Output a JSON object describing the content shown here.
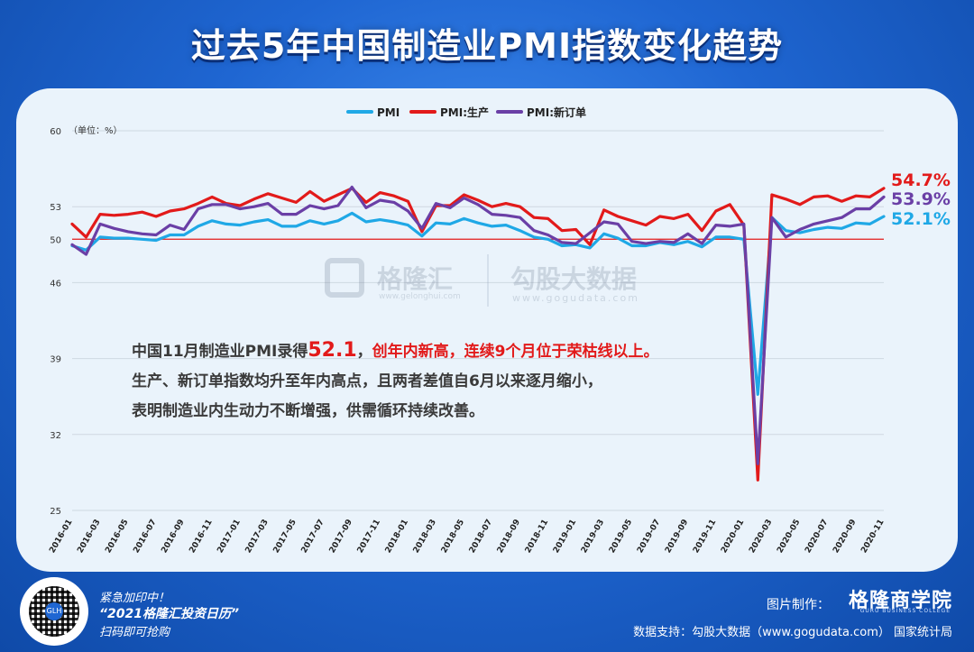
{
  "title": "过去5年中国制造业PMI指数变化趋势",
  "annotation": {
    "line1_a": "中国11月制造业PMI录得",
    "line1_value": "52.1",
    "line1_b": "，",
    "line1_red": "创年内新高，连续9个月位于荣枯线以上。",
    "line2": "生产、新订单指数均升至年内高点，且两者差值自6月以来逐月缩小，",
    "line3": "表明制造业内生动力不断增强，供需循环持续改善。"
  },
  "end_labels": {
    "pmi": "52.1%",
    "production": "54.7%",
    "new_orders": "53.9%"
  },
  "watermark": {
    "brand1": "格隆汇",
    "brand1_url": "www.gelonghui.com",
    "brand2": "勾股大数据",
    "brand2_url": "www.gogudata.com"
  },
  "footer": {
    "promo_line1": "紧急加印中！",
    "promo_line2": "“2021格隆汇投资日历”",
    "promo_line3": "扫码即可抢购",
    "credit_label": "图片制作：",
    "brand": "格隆商学院",
    "brand_sub": "GURU BUSINESS COLLEGE",
    "source": "数据支持：勾股大数据（www.gogudata.com）     国家统计局"
  },
  "colors": {
    "pmi": "#1fa8e6",
    "production": "#e21a1a",
    "new_orders": "#6a3fa6",
    "threshold": "#e21a1a"
  },
  "chart_data": {
    "type": "line",
    "ylabel": "（单位：%）",
    "ylim": [
      25,
      60
    ],
    "yticks": [
      25,
      32,
      39,
      46,
      50,
      53,
      60
    ],
    "threshold": 50,
    "legend_position": "top-center",
    "x": [
      "2016-01",
      "2016-02",
      "2016-03",
      "2016-04",
      "2016-05",
      "2016-06",
      "2016-07",
      "2016-08",
      "2016-09",
      "2016-10",
      "2016-11",
      "2016-12",
      "2017-01",
      "2017-02",
      "2017-03",
      "2017-04",
      "2017-05",
      "2017-06",
      "2017-07",
      "2017-08",
      "2017-09",
      "2017-10",
      "2017-11",
      "2017-12",
      "2018-01",
      "2018-02",
      "2018-03",
      "2018-04",
      "2018-05",
      "2018-06",
      "2018-07",
      "2018-08",
      "2018-09",
      "2018-10",
      "2018-11",
      "2018-12",
      "2019-01",
      "2019-02",
      "2019-03",
      "2019-04",
      "2019-05",
      "2019-06",
      "2019-07",
      "2019-08",
      "2019-09",
      "2019-10",
      "2019-11",
      "2019-12",
      "2020-01",
      "2020-02",
      "2020-03",
      "2020-04",
      "2020-05",
      "2020-06",
      "2020-07",
      "2020-08",
      "2020-09",
      "2020-10",
      "2020-11"
    ],
    "xticks": [
      "2016-01",
      "2016-03",
      "2016-05",
      "2016-07",
      "2016-09",
      "2016-11",
      "2017-01",
      "2017-03",
      "2017-05",
      "2017-07",
      "2017-09",
      "2017-11",
      "2018-01",
      "2018-03",
      "2018-05",
      "2018-07",
      "2018-09",
      "2018-11",
      "2019-01",
      "2019-03",
      "2019-05",
      "2019-07",
      "2019-09",
      "2019-11",
      "2020-01",
      "2020-03",
      "2020-05",
      "2020-07",
      "2020-09",
      "2020-11"
    ],
    "series": [
      {
        "name": "PMI",
        "color": "#1fa8e6",
        "values": [
          49.4,
          49.0,
          50.2,
          50.1,
          50.1,
          50.0,
          49.9,
          50.4,
          50.4,
          51.2,
          51.7,
          51.4,
          51.3,
          51.6,
          51.8,
          51.2,
          51.2,
          51.7,
          51.4,
          51.7,
          52.4,
          51.6,
          51.8,
          51.6,
          51.3,
          50.3,
          51.5,
          51.4,
          51.9,
          51.5,
          51.2,
          51.3,
          50.8,
          50.2,
          50.0,
          49.4,
          49.5,
          49.2,
          50.5,
          50.1,
          49.4,
          49.4,
          49.7,
          49.5,
          49.8,
          49.3,
          50.2,
          50.2,
          50.0,
          35.7,
          52.0,
          50.8,
          50.6,
          50.9,
          51.1,
          51.0,
          51.5,
          51.4,
          52.1
        ]
      },
      {
        "name": "PMI:生产",
        "color": "#e21a1a",
        "values": [
          51.4,
          50.2,
          52.3,
          52.2,
          52.3,
          52.5,
          52.1,
          52.6,
          52.8,
          53.3,
          53.9,
          53.3,
          53.1,
          53.7,
          54.2,
          53.8,
          53.4,
          54.4,
          53.5,
          54.1,
          54.7,
          53.4,
          54.3,
          54.0,
          53.5,
          50.7,
          53.1,
          53.1,
          54.1,
          53.6,
          53.0,
          53.3,
          53.0,
          52.0,
          51.9,
          50.8,
          50.9,
          49.5,
          52.7,
          52.1,
          51.7,
          51.3,
          52.1,
          51.9,
          52.3,
          50.8,
          52.6,
          53.2,
          51.3,
          27.8,
          54.1,
          53.7,
          53.2,
          53.9,
          54.0,
          53.5,
          54.0,
          53.9,
          54.7
        ]
      },
      {
        "name": "PMI:新订单",
        "color": "#6a3fa6",
        "values": [
          49.5,
          48.6,
          51.4,
          51.0,
          50.7,
          50.5,
          50.4,
          51.3,
          50.9,
          52.8,
          53.2,
          53.2,
          52.8,
          53.0,
          53.3,
          52.3,
          52.3,
          53.1,
          52.8,
          53.1,
          54.8,
          52.9,
          53.6,
          53.4,
          52.6,
          51.0,
          53.3,
          52.9,
          53.8,
          53.2,
          52.3,
          52.2,
          52.0,
          50.8,
          50.4,
          49.7,
          49.6,
          50.6,
          51.6,
          51.4,
          49.8,
          49.6,
          49.8,
          49.7,
          50.5,
          49.6,
          51.3,
          51.2,
          51.4,
          29.3,
          52.0,
          50.2,
          50.9,
          51.4,
          51.7,
          52.0,
          52.8,
          52.8,
          53.9
        ]
      }
    ]
  }
}
